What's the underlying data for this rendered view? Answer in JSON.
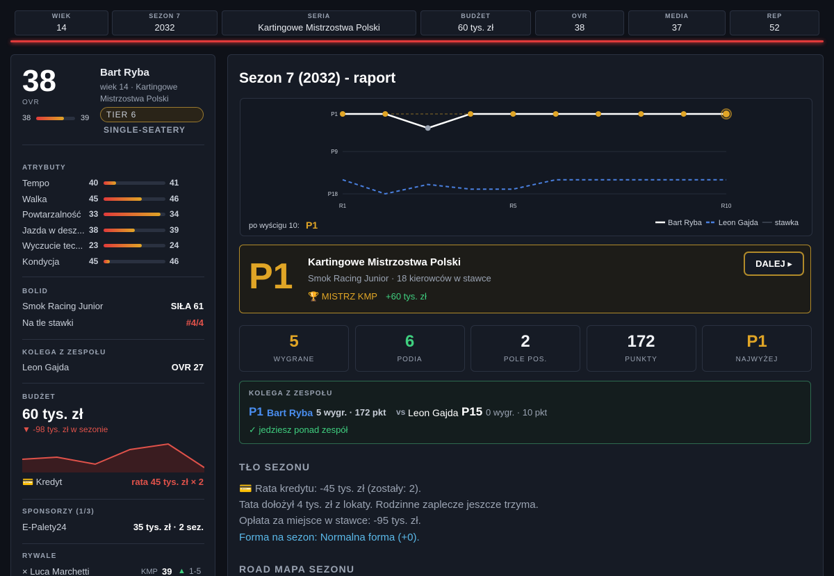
{
  "top_bar": [
    {
      "label": "WIEK",
      "value": "14"
    },
    {
      "label": "SEZON 7",
      "value": "2032"
    },
    {
      "label": "SERIA",
      "value": "Kartingowe Mistrzostwa Polski"
    },
    {
      "label": "BUDŻET",
      "value": "60 tys. zł"
    },
    {
      "label": "OVR",
      "value": "38"
    },
    {
      "label": "MEDIA",
      "value": "37"
    },
    {
      "label": "REP",
      "value": "52"
    }
  ],
  "profile": {
    "ovr": "38",
    "ovr_label": "OVR",
    "ovr_from": "38",
    "ovr_to": "39",
    "name": "Bart Ryba",
    "subtitle": "wiek 14 · Kartingowe Mistrzostwa Polski",
    "tier": "TIER 6",
    "category": "SINGLE-SEATERY"
  },
  "attributes": {
    "title": "ATRYBUTY",
    "rows": [
      {
        "name": "Tempo",
        "value": "40",
        "next": "41"
      },
      {
        "name": "Walka",
        "value": "45",
        "next": "46"
      },
      {
        "name": "Powtarzalność",
        "value": "33",
        "next": "34"
      },
      {
        "name": "Jazda w desz...",
        "value": "38",
        "next": "39"
      },
      {
        "name": "Wyczucie tec...",
        "value": "23",
        "next": "24"
      },
      {
        "name": "Kondycja",
        "value": "45",
        "next": "46"
      }
    ]
  },
  "car": {
    "title": "BOLID",
    "rows": [
      {
        "label": "Smok Racing Junior",
        "value": "SIŁA 61"
      },
      {
        "label": "Na tle stawki",
        "value": "#4/4"
      }
    ]
  },
  "teammate_side": {
    "title": "KOLEGA Z ZESPOŁU",
    "name": "Leon Gajda",
    "value": "OVR 27"
  },
  "budget": {
    "title": "BUDŻET",
    "amount": "60 tys. zł",
    "change": "▼ -98 tys. zł w sezonie",
    "loan_label": "💳 Kredyt",
    "loan_value": "rata 45 tys. zł × 2"
  },
  "sponsors": {
    "title": "SPONSORZY (1/3)",
    "rows": [
      {
        "name": "E-Palety24",
        "value": "35 tys. zł · 2 sez."
      }
    ]
  },
  "rivals": {
    "title": "RYWALE",
    "rows": [
      {
        "name": "× Luca Marchetti",
        "series": "KMP",
        "ovr": "39",
        "trend": "▲",
        "range": "1-5"
      }
    ]
  },
  "report": {
    "title": "Sezon 7 (2032) - raport",
    "after_race_label": "po wyścigu 10:",
    "after_race_value": "P1",
    "field_label": "stawka"
  },
  "chart_data": {
    "type": "line",
    "x": [
      "R1",
      null,
      null,
      null,
      "R5",
      null,
      null,
      null,
      null,
      "R10"
    ],
    "ylim": [
      18,
      1
    ],
    "yticks": [
      {
        "value": 1,
        "label": "P1"
      },
      {
        "value": 9,
        "label": "P9"
      },
      {
        "value": 18,
        "label": "P18"
      }
    ],
    "series": [
      {
        "name": "Bart Ryba",
        "color": "#ffffff",
        "values": [
          1,
          1,
          4,
          1,
          1,
          1,
          1,
          1,
          1,
          1
        ]
      },
      {
        "name": "Leon Gajda",
        "color": "#4a80e0",
        "dashed": true,
        "values": [
          15,
          18,
          16,
          17,
          17,
          15,
          15,
          15,
          15,
          15
        ]
      }
    ]
  },
  "result": {
    "position": "P1",
    "series": "Kartingowe Mistrzostwa Polski",
    "team": "Smok Racing Junior · 18 kierowców w stawce",
    "award": "🏆 MISTRZ KMP",
    "prize": "+60 tys. zł",
    "button": "DALEJ ▸"
  },
  "stats": [
    {
      "value": "5",
      "label": "WYGRANE",
      "color": "#e0a526"
    },
    {
      "value": "6",
      "label": "PODIA",
      "color": "#3fcf7f"
    },
    {
      "value": "2",
      "label": "POLE POS.",
      "color": "#f0f2f5"
    },
    {
      "value": "172",
      "label": "PUNKTY",
      "color": "#f0f2f5"
    },
    {
      "value": "P1",
      "label": "NAJWYŻEJ",
      "color": "#e0a526"
    }
  ],
  "teammate": {
    "title": "KOLEGA Z ZESPOŁU",
    "driver_pos": "P1",
    "driver_name": "Bart Ryba",
    "driver_stats": "5 wygr. · 172 pkt",
    "vs": "vs",
    "mate_name": "Leon Gajda",
    "mate_pos": "P15",
    "mate_stats": "0 wygr. · 10 pkt",
    "verdict": "✓ jedziesz ponad zespół"
  },
  "background": {
    "title": "TŁO SEZONU",
    "lines": [
      "💳 Rata kredytu: -45 tys. zł (zostały: 2).",
      "Tata dołożył 4 tys. zł z lokaty. Rodzinne zaplecze jeszcze trzyma.",
      "Opłata za miejsce w stawce: -95 tys. zł.",
      "Forma na sezon: Normalna forma (+0)."
    ]
  },
  "roadmap": {
    "title": "ROAD MAPA SEZONU"
  }
}
